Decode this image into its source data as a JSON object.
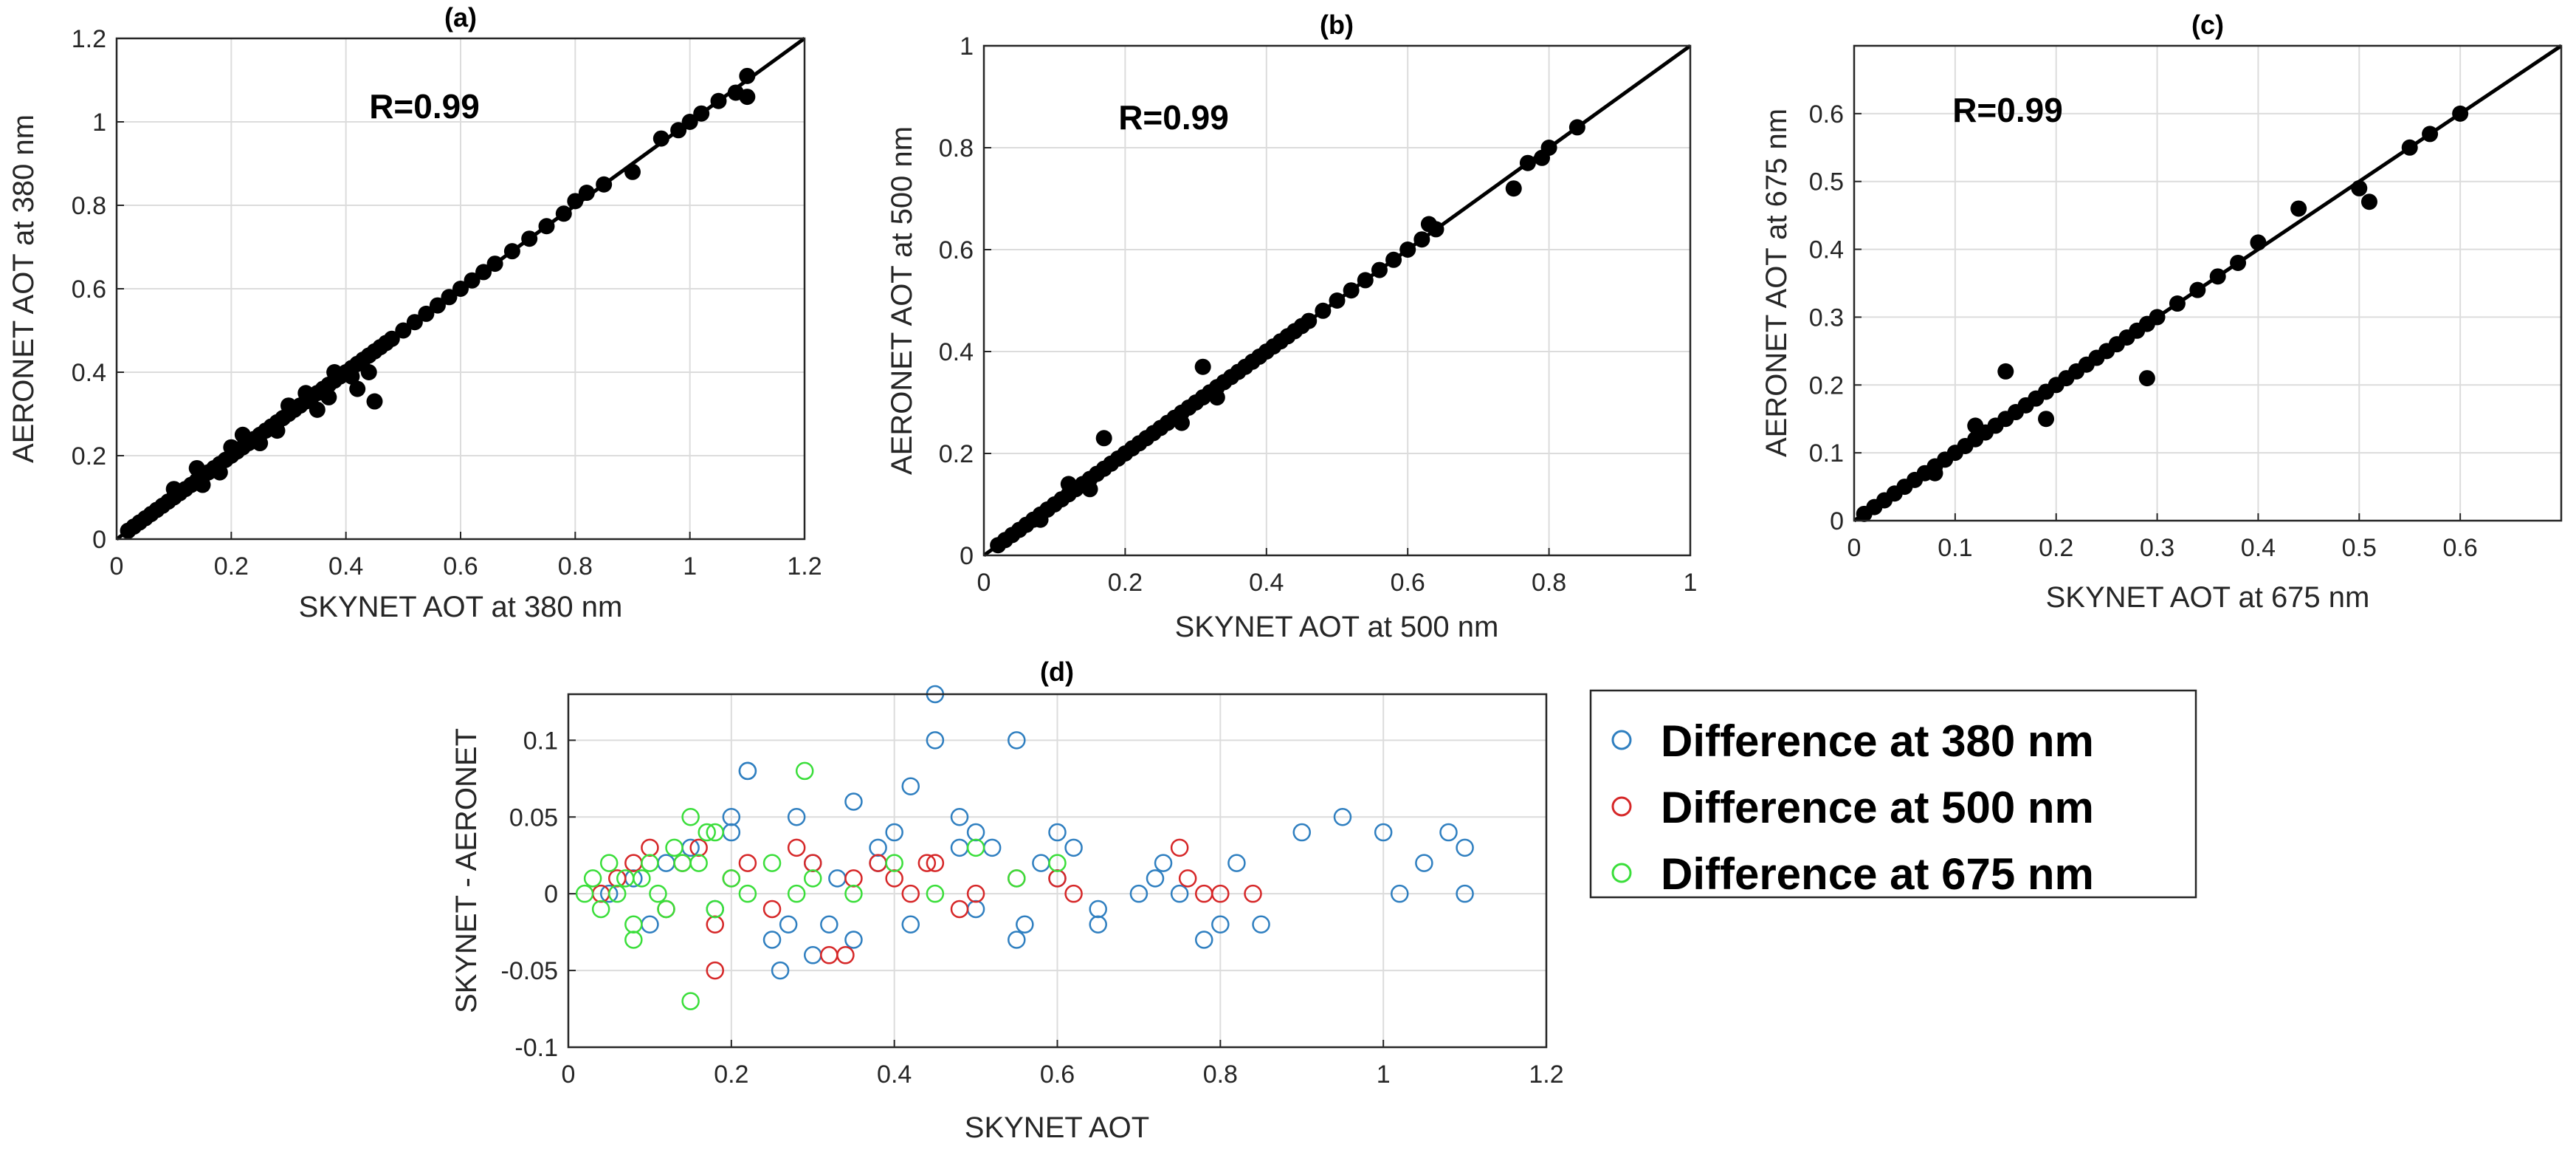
{
  "figure": {
    "colors": {
      "background": "#ffffff",
      "axes": "#262626",
      "grid": "#dcdcdc",
      "points": "#000000",
      "line": "#000000",
      "legend_border": "#262626"
    }
  },
  "chart_data": [
    {
      "id": "a",
      "type": "scatter",
      "title": "(a)",
      "xlabel": "SKYNET AOT at 380 nm",
      "ylabel": "AERONET AOT at 380 nm",
      "xlim": [
        0,
        1.2
      ],
      "ylim": [
        0,
        1.2
      ],
      "xticks": [
        0,
        0.2,
        0.4,
        0.6,
        0.8,
        1,
        1.2
      ],
      "yticks": [
        0,
        0.2,
        0.4,
        0.6,
        0.8,
        1,
        1.2
      ],
      "xtick_labels": [
        "0",
        "0.2",
        "0.4",
        "0.6",
        "0.8",
        "1",
        "1.2"
      ],
      "ytick_labels": [
        "0",
        "0.2",
        "0.4",
        "0.6",
        "0.8",
        "1",
        "1.2"
      ],
      "annotation": "R=0.99",
      "grid": true,
      "reference_line": "1:1",
      "series": [
        {
          "name": "AOT 380 nm",
          "x": [
            0.02,
            0.03,
            0.04,
            0.05,
            0.06,
            0.07,
            0.08,
            0.09,
            0.1,
            0.11,
            0.12,
            0.13,
            0.14,
            0.15,
            0.16,
            0.17,
            0.18,
            0.19,
            0.2,
            0.21,
            0.22,
            0.23,
            0.24,
            0.25,
            0.26,
            0.27,
            0.28,
            0.29,
            0.3,
            0.31,
            0.32,
            0.33,
            0.34,
            0.35,
            0.36,
            0.37,
            0.38,
            0.39,
            0.4,
            0.41,
            0.42,
            0.43,
            0.44,
            0.45,
            0.46,
            0.47,
            0.48,
            0.5,
            0.52,
            0.54,
            0.56,
            0.58,
            0.6,
            0.62,
            0.64,
            0.66,
            0.69,
            0.72,
            0.75,
            0.78,
            0.8,
            0.82,
            0.85,
            0.9,
            0.95,
            0.98,
            1.0,
            1.02,
            1.05,
            1.08,
            1.1,
            1.1,
            0.1,
            0.15,
            0.2,
            0.25,
            0.3,
            0.35,
            0.38,
            0.42,
            0.45,
            0.14,
            0.18,
            0.22,
            0.28,
            0.33,
            0.37,
            0.41,
            0.44
          ],
          "y": [
            0.02,
            0.03,
            0.04,
            0.05,
            0.06,
            0.07,
            0.08,
            0.09,
            0.1,
            0.11,
            0.12,
            0.13,
            0.14,
            0.15,
            0.16,
            0.17,
            0.18,
            0.19,
            0.2,
            0.21,
            0.22,
            0.23,
            0.24,
            0.25,
            0.26,
            0.27,
            0.28,
            0.29,
            0.3,
            0.31,
            0.32,
            0.33,
            0.34,
            0.35,
            0.36,
            0.37,
            0.38,
            0.39,
            0.4,
            0.41,
            0.42,
            0.43,
            0.44,
            0.45,
            0.46,
            0.47,
            0.48,
            0.5,
            0.52,
            0.54,
            0.56,
            0.58,
            0.6,
            0.62,
            0.64,
            0.66,
            0.69,
            0.72,
            0.75,
            0.78,
            0.81,
            0.83,
            0.85,
            0.88,
            0.96,
            0.98,
            1.0,
            1.02,
            1.05,
            1.07,
            1.11,
            1.06,
            0.12,
            0.13,
            0.22,
            0.23,
            0.32,
            0.31,
            0.4,
            0.36,
            0.33,
            0.17,
            0.16,
            0.25,
            0.26,
            0.35,
            0.34,
            0.39,
            0.4
          ]
        }
      ]
    },
    {
      "id": "b",
      "type": "scatter",
      "title": "(b)",
      "xlabel": "SKYNET AOT at 500 nm",
      "ylabel": "AERONET AOT at 500 nm",
      "xlim": [
        0,
        1
      ],
      "ylim": [
        0,
        1
      ],
      "xticks": [
        0,
        0.2,
        0.4,
        0.6,
        0.8,
        1
      ],
      "yticks": [
        0,
        0.2,
        0.4,
        0.6,
        0.8,
        1
      ],
      "xtick_labels": [
        "0",
        "0.2",
        "0.4",
        "0.6",
        "0.8",
        "1"
      ],
      "ytick_labels": [
        "0",
        "0.2",
        "0.4",
        "0.6",
        "0.8",
        "1"
      ],
      "annotation": "R=0.99",
      "grid": true,
      "reference_line": "1:1",
      "series": [
        {
          "name": "AOT 500 nm",
          "x": [
            0.02,
            0.03,
            0.04,
            0.05,
            0.06,
            0.07,
            0.08,
            0.09,
            0.1,
            0.11,
            0.12,
            0.13,
            0.14,
            0.15,
            0.16,
            0.17,
            0.18,
            0.19,
            0.2,
            0.21,
            0.22,
            0.23,
            0.24,
            0.25,
            0.26,
            0.27,
            0.28,
            0.29,
            0.3,
            0.31,
            0.32,
            0.33,
            0.34,
            0.35,
            0.36,
            0.37,
            0.38,
            0.39,
            0.4,
            0.41,
            0.42,
            0.43,
            0.44,
            0.45,
            0.46,
            0.48,
            0.5,
            0.52,
            0.54,
            0.56,
            0.58,
            0.6,
            0.62,
            0.63,
            0.64,
            0.75,
            0.77,
            0.79,
            0.8,
            0.84,
            0.17,
            0.31,
            0.28,
            0.12,
            0.08,
            0.15,
            0.33
          ],
          "y": [
            0.02,
            0.03,
            0.04,
            0.05,
            0.06,
            0.07,
            0.08,
            0.09,
            0.1,
            0.11,
            0.12,
            0.13,
            0.14,
            0.15,
            0.16,
            0.17,
            0.18,
            0.19,
            0.2,
            0.21,
            0.22,
            0.23,
            0.24,
            0.25,
            0.26,
            0.27,
            0.28,
            0.29,
            0.3,
            0.31,
            0.32,
            0.33,
            0.34,
            0.35,
            0.36,
            0.37,
            0.38,
            0.39,
            0.4,
            0.41,
            0.42,
            0.43,
            0.44,
            0.45,
            0.46,
            0.48,
            0.5,
            0.52,
            0.54,
            0.56,
            0.58,
            0.6,
            0.62,
            0.65,
            0.64,
            0.72,
            0.77,
            0.78,
            0.8,
            0.84,
            0.23,
            0.37,
            0.26,
            0.14,
            0.07,
            0.13,
            0.31
          ]
        }
      ]
    },
    {
      "id": "c",
      "type": "scatter",
      "title": "(c)",
      "xlabel": "SKYNET AOT at 675 nm",
      "ylabel": "AERONET AOT at 675 nm",
      "xlim": [
        0,
        0.7
      ],
      "ylim": [
        0,
        0.7
      ],
      "xticks": [
        0,
        0.1,
        0.2,
        0.3,
        0.4,
        0.5,
        0.6
      ],
      "yticks": [
        0,
        0.1,
        0.2,
        0.3,
        0.4,
        0.5,
        0.6
      ],
      "xtick_labels": [
        "0",
        "0.1",
        "0.2",
        "0.3",
        "0.4",
        "0.5",
        "0.6"
      ],
      "ytick_labels": [
        "0",
        "0.1",
        "0.2",
        "0.3",
        "0.4",
        "0.5",
        "0.6"
      ],
      "annotation": "R=0.99",
      "grid": true,
      "reference_line": "1:1",
      "series": [
        {
          "name": "AOT 675 nm",
          "x": [
            0.01,
            0.02,
            0.03,
            0.04,
            0.05,
            0.06,
            0.07,
            0.08,
            0.09,
            0.1,
            0.11,
            0.12,
            0.13,
            0.14,
            0.15,
            0.16,
            0.17,
            0.18,
            0.19,
            0.2,
            0.21,
            0.22,
            0.23,
            0.24,
            0.25,
            0.26,
            0.27,
            0.28,
            0.29,
            0.3,
            0.32,
            0.34,
            0.36,
            0.38,
            0.4,
            0.44,
            0.5,
            0.51,
            0.55,
            0.57,
            0.6,
            0.15,
            0.29,
            0.19,
            0.12,
            0.08
          ],
          "y": [
            0.01,
            0.02,
            0.03,
            0.04,
            0.05,
            0.06,
            0.07,
            0.08,
            0.09,
            0.1,
            0.11,
            0.12,
            0.13,
            0.14,
            0.15,
            0.16,
            0.17,
            0.18,
            0.19,
            0.2,
            0.21,
            0.22,
            0.23,
            0.24,
            0.25,
            0.26,
            0.27,
            0.28,
            0.29,
            0.3,
            0.32,
            0.34,
            0.36,
            0.38,
            0.41,
            0.46,
            0.49,
            0.47,
            0.55,
            0.57,
            0.6,
            0.22,
            0.21,
            0.15,
            0.14,
            0.07
          ]
        }
      ]
    },
    {
      "id": "d",
      "type": "scatter",
      "title": "(d)",
      "xlabel": "SKYNET AOT",
      "ylabel": "SKYNET - AERONET",
      "xlim": [
        0,
        1.2
      ],
      "ylim": [
        -0.1,
        0.13
      ],
      "xticks": [
        0,
        0.2,
        0.4,
        0.6,
        0.8,
        1,
        1.2
      ],
      "yticks": [
        -0.1,
        -0.05,
        0,
        0.05,
        0.1
      ],
      "xtick_labels": [
        "0",
        "0.2",
        "0.4",
        "0.6",
        "0.8",
        "1",
        "1.2"
      ],
      "ytick_labels": [
        "-0.1",
        "-0.05",
        "0",
        "0.05",
        "0.1"
      ],
      "grid": true,
      "marker": "open-circle",
      "legend_position": "outside-right",
      "series": [
        {
          "name": "Difference at 380 nm",
          "color": "#2f7fc0",
          "x": [
            0.05,
            0.08,
            0.1,
            0.12,
            0.15,
            0.18,
            0.2,
            0.22,
            0.25,
            0.28,
            0.3,
            0.32,
            0.35,
            0.38,
            0.4,
            0.42,
            0.45,
            0.45,
            0.48,
            0.5,
            0.52,
            0.55,
            0.56,
            0.58,
            0.6,
            0.62,
            0.65,
            0.7,
            0.72,
            0.75,
            0.78,
            0.8,
            0.82,
            0.85,
            0.9,
            0.95,
            1.0,
            1.02,
            1.05,
            1.08,
            1.1,
            1.1,
            0.2,
            0.22,
            0.3,
            0.35,
            0.26,
            0.42,
            0.55,
            0.6,
            0.38,
            0.5,
            0.65,
            0.73,
            0.48,
            0.27,
            0.33
          ],
          "y": [
            0.0,
            0.01,
            -0.02,
            0.02,
            0.03,
            -0.01,
            0.04,
            0.08,
            -0.03,
            0.05,
            0.02,
            -0.02,
            0.06,
            0.03,
            0.04,
            0.07,
            0.13,
            0.1,
            0.05,
            0.04,
            0.03,
            0.1,
            -0.02,
            0.02,
            0.01,
            0.03,
            -0.01,
            0.0,
            0.01,
            0.0,
            -0.03,
            -0.02,
            0.02,
            -0.02,
            0.04,
            0.05,
            0.04,
            0.0,
            0.02,
            0.04,
            0.03,
            0.0,
            0.05,
            0.08,
            -0.04,
            -0.03,
            -0.05,
            -0.02,
            -0.03,
            0.04,
            0.02,
            -0.01,
            -0.02,
            0.02,
            0.03,
            -0.02,
            0.01
          ]
        },
        {
          "name": "Difference at 500 nm",
          "color": "#d62728",
          "x": [
            0.04,
            0.06,
            0.08,
            0.1,
            0.12,
            0.14,
            0.16,
            0.18,
            0.2,
            0.22,
            0.25,
            0.28,
            0.3,
            0.32,
            0.35,
            0.38,
            0.4,
            0.42,
            0.45,
            0.48,
            0.5,
            0.55,
            0.6,
            0.62,
            0.75,
            0.76,
            0.78,
            0.8,
            0.84,
            0.18,
            0.34,
            0.44
          ],
          "y": [
            0.0,
            0.01,
            0.02,
            0.03,
            -0.01,
            0.02,
            0.03,
            -0.02,
            0.01,
            0.02,
            -0.01,
            0.03,
            0.02,
            -0.04,
            0.01,
            0.02,
            0.01,
            0.0,
            0.02,
            -0.01,
            0.0,
            0.01,
            0.01,
            0.0,
            0.03,
            0.01,
            0.0,
            0.0,
            0.0,
            -0.05,
            -0.04,
            0.02
          ]
        },
        {
          "name": "Difference at 675 nm",
          "color": "#3ade3a",
          "x": [
            0.02,
            0.03,
            0.04,
            0.05,
            0.06,
            0.07,
            0.08,
            0.09,
            0.1,
            0.11,
            0.12,
            0.13,
            0.14,
            0.15,
            0.16,
            0.17,
            0.18,
            0.2,
            0.22,
            0.25,
            0.28,
            0.3,
            0.35,
            0.4,
            0.45,
            0.5,
            0.55,
            0.6,
            0.15,
            0.29,
            0.18,
            0.08
          ],
          "y": [
            0.0,
            0.01,
            -0.01,
            0.02,
            0.0,
            0.01,
            -0.02,
            0.01,
            0.02,
            0.0,
            -0.01,
            0.03,
            0.02,
            0.05,
            0.02,
            0.04,
            -0.01,
            0.01,
            0.0,
            0.02,
            0.0,
            0.01,
            0.0,
            0.02,
            0.0,
            0.03,
            0.01,
            0.02,
            -0.07,
            0.08,
            0.04,
            -0.03
          ]
        }
      ]
    }
  ]
}
